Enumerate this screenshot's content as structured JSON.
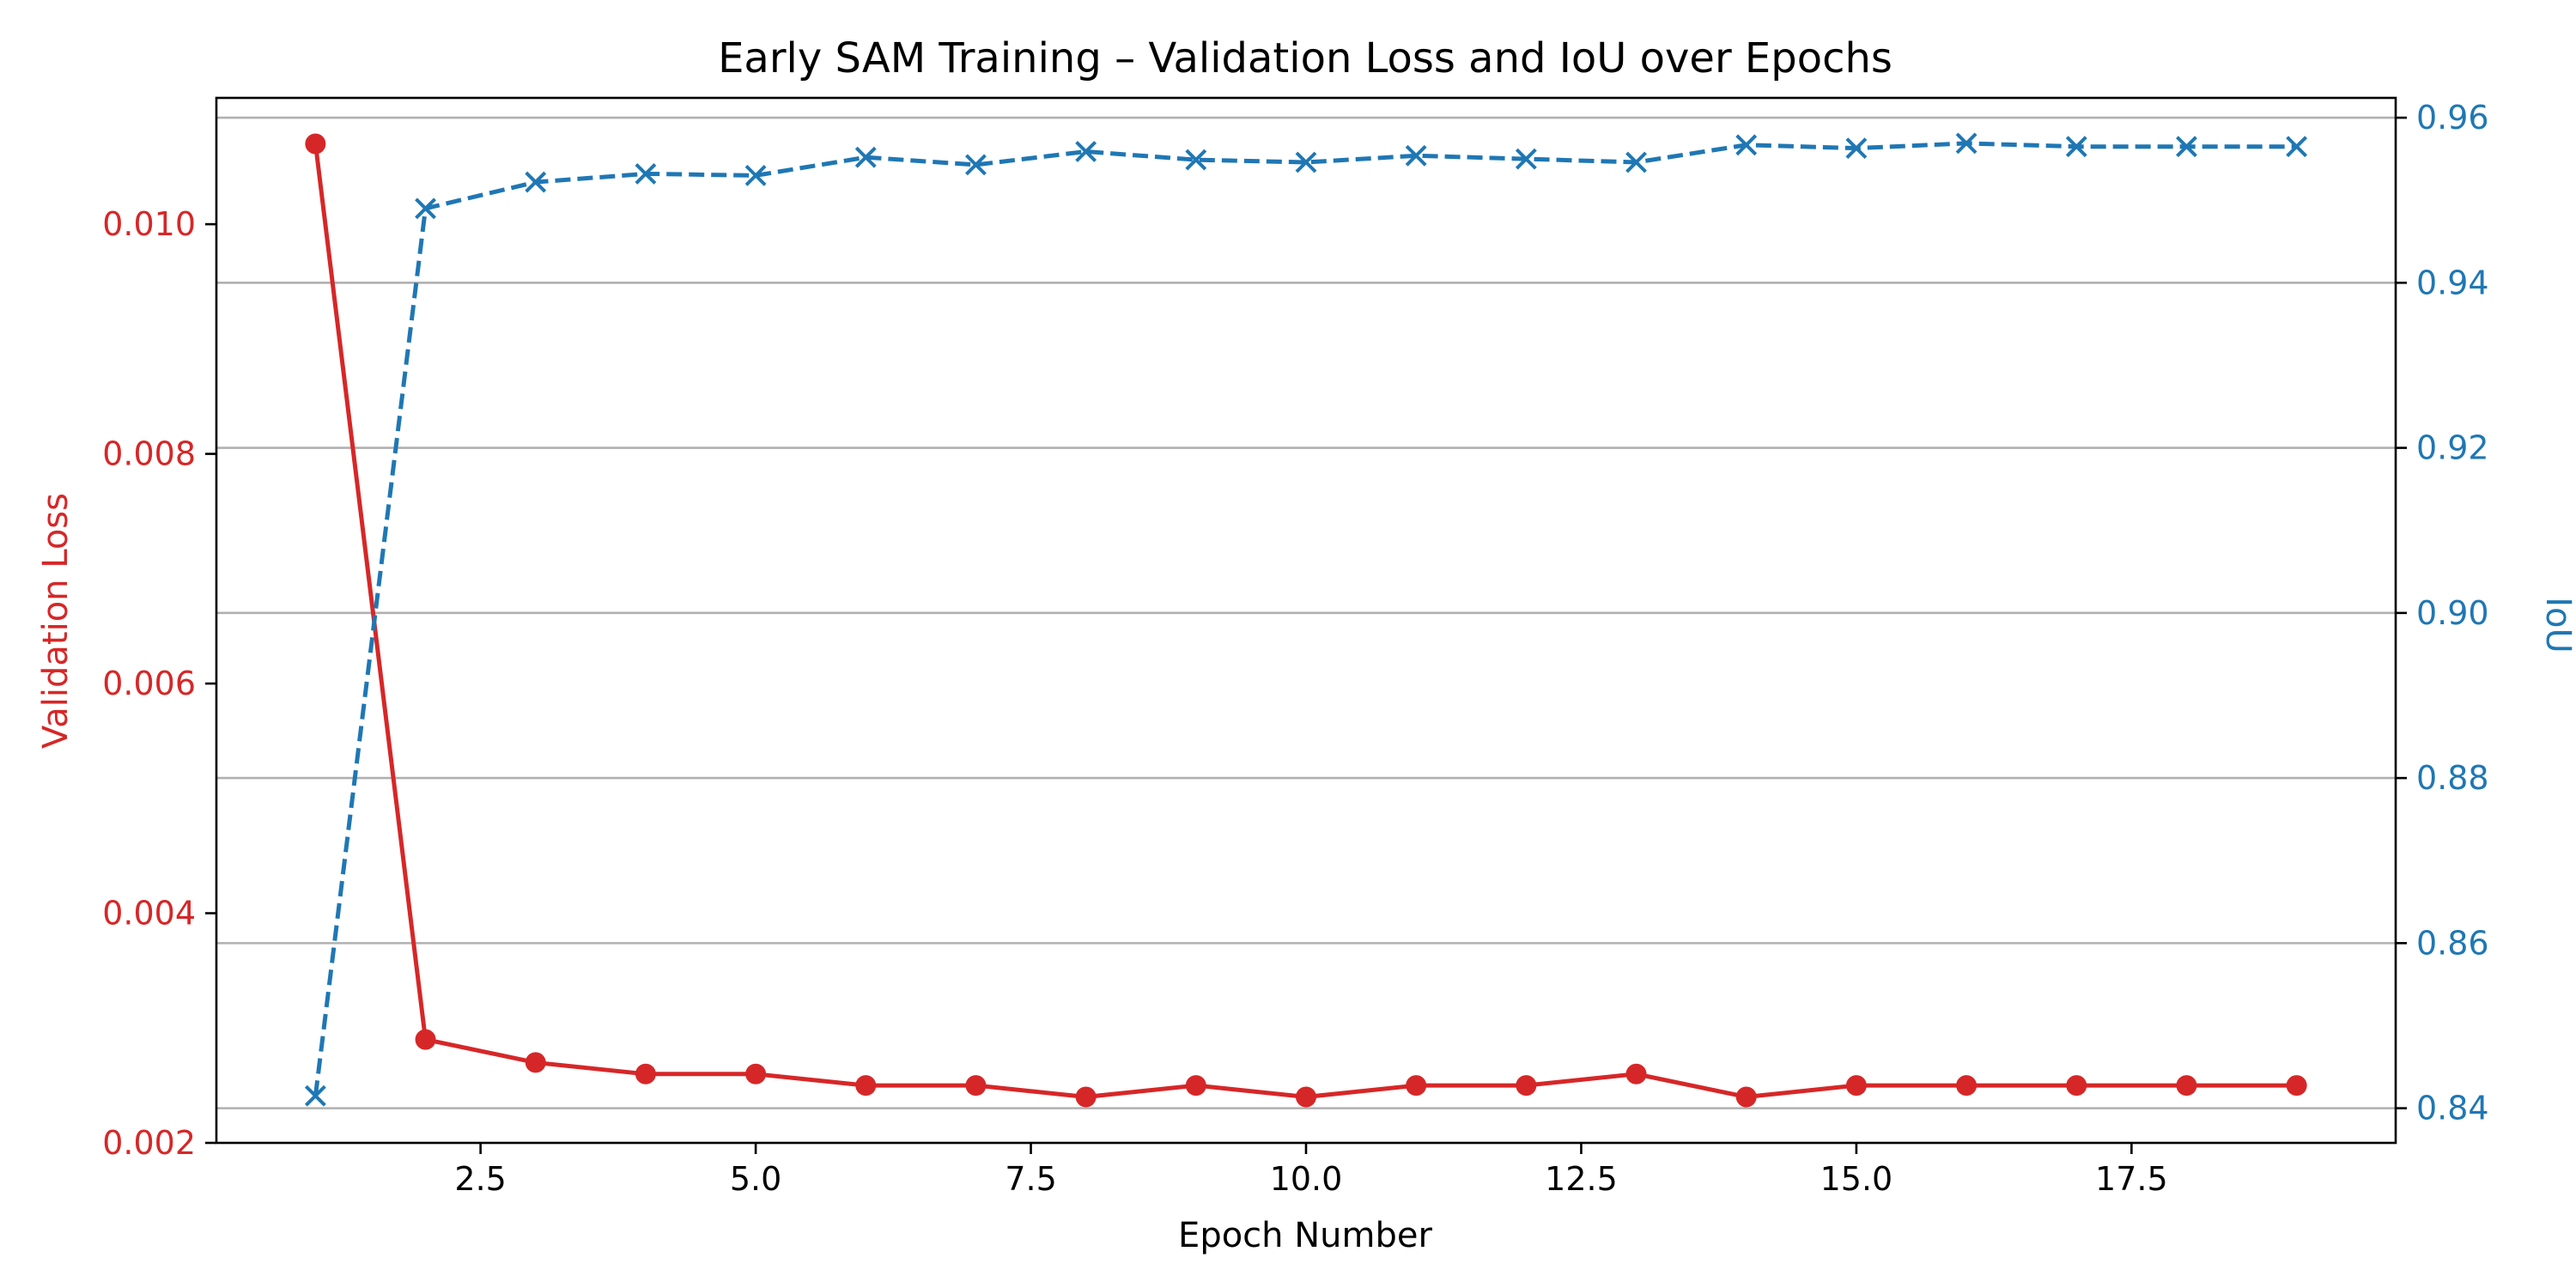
{
  "colors": {
    "loss": "#d62728",
    "iou": "#1f77b4",
    "axis": "#000000",
    "grid": "#b0b0b0"
  },
  "chart_data": {
    "type": "line",
    "title": "Early SAM Training – Validation Loss and IoU over Epochs",
    "xlabel": "Epoch Number",
    "y_left_label": "Validation Loss",
    "y_right_label": "IoU",
    "xlim": [
      0.1,
      19.9
    ],
    "ylim_left": [
      0.002,
      0.0111
    ],
    "ylim_right": [
      0.8358,
      0.9624
    ],
    "x_ticks": [
      "2.5",
      "5.0",
      "7.5",
      "10.0",
      "12.5",
      "15.0",
      "17.5"
    ],
    "y_left_ticks": [
      "0.002",
      "0.004",
      "0.006",
      "0.008",
      "0.010"
    ],
    "y_right_ticks": [
      "0.84",
      "0.86",
      "0.88",
      "0.90",
      "0.92",
      "0.94",
      "0.96"
    ],
    "grid": "horizontal, right axis",
    "x": [
      1,
      2,
      3,
      4,
      5,
      6,
      7,
      8,
      9,
      10,
      11,
      12,
      13,
      14,
      15,
      16,
      17,
      18,
      19
    ],
    "series": [
      {
        "axis": "left",
        "line_style": "solid",
        "marker": "circle",
        "values": [
          0.0107,
          0.0029,
          0.0027,
          0.0026,
          0.0026,
          0.0025,
          0.0025,
          0.0024,
          0.0025,
          0.0024,
          0.0025,
          0.0025,
          0.0026,
          0.0024,
          0.0025,
          0.0025,
          0.0025,
          0.0025,
          0.0025
        ]
      },
      {
        "axis": "right",
        "line_style": "dashed",
        "marker": "x",
        "values": [
          0.8415,
          0.949,
          0.9522,
          0.9532,
          0.953,
          0.9552,
          0.9543,
          0.9559,
          0.9549,
          0.9546,
          0.9554,
          0.955,
          0.9546,
          0.9567,
          0.9563,
          0.9569,
          0.9565,
          0.9565,
          0.9565
        ]
      }
    ]
  }
}
